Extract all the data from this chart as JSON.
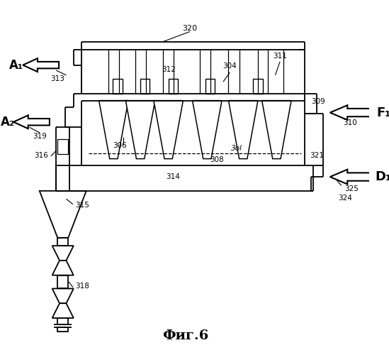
{
  "title": "Фиг.6",
  "bg_color": "#ffffff",
  "label_320": "320",
  "label_312": "312",
  "label_304": "304",
  "label_311": "311",
  "label_309": "309",
  "label_306": "306",
  "label_301": "3ol",
  "label_321": "321",
  "label_308": "308",
  "label_314": "314",
  "label_313": "313",
  "label_319": "319",
  "label_315": "315",
  "label_316": "316",
  "label_318": "318",
  "label_310": "310",
  "label_325": "325",
  "label_324": "324",
  "label_A1": "A₁",
  "label_A2": "A₂",
  "label_F1": "F₁",
  "label_D1": "D₁",
  "figsize": [
    5.49,
    5.0
  ],
  "dpi": 100
}
